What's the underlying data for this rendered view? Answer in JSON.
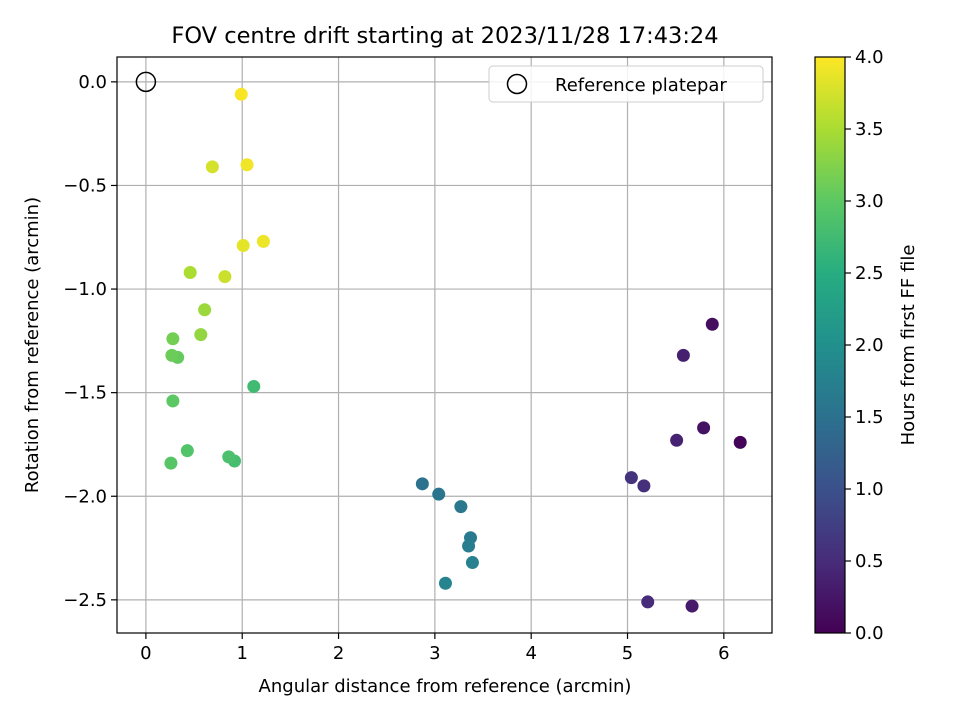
{
  "chart_data": {
    "type": "scatter",
    "title": "FOV centre drift starting at 2023/11/28 17:43:24",
    "xlabel": "Angular distance from reference (arcmin)",
    "ylabel": "Rotation from reference (arcmin)",
    "xlim": [
      -0.3,
      6.5
    ],
    "ylim": [
      -2.66,
      0.12
    ],
    "xticks": [
      0,
      1,
      2,
      3,
      4,
      5,
      6
    ],
    "xtick_labels": [
      "0",
      "1",
      "2",
      "3",
      "4",
      "5",
      "6"
    ],
    "yticks": [
      0.0,
      -0.5,
      -1.0,
      -1.5,
      -2.0,
      -2.5
    ],
    "ytick_labels": [
      "0.0",
      "−0.5",
      "−1.0",
      "−1.5",
      "−2.0",
      "−2.5"
    ],
    "grid": true,
    "legend": {
      "label": "Reference platepar",
      "position": "top-right"
    },
    "reference_point": {
      "x": 0.0,
      "y": 0.0
    },
    "colorbar": {
      "label": "Hours from first FF file",
      "range": [
        0.0,
        4.0
      ],
      "ticks": [
        0.0,
        0.5,
        1.0,
        1.5,
        2.0,
        2.5,
        3.0,
        3.5,
        4.0
      ],
      "tick_labels": [
        "0.0",
        "0.5",
        "1.0",
        "1.5",
        "2.0",
        "2.5",
        "3.0",
        "3.5",
        "4.0"
      ],
      "colormap": "viridis"
    },
    "points": [
      {
        "x": 6.17,
        "y": -1.74,
        "c": 0.05
      },
      {
        "x": 5.88,
        "y": -1.17,
        "c": 0.15
      },
      {
        "x": 5.79,
        "y": -1.67,
        "c": 0.2
      },
      {
        "x": 5.67,
        "y": -2.53,
        "c": 0.3
      },
      {
        "x": 5.58,
        "y": -1.32,
        "c": 0.35
      },
      {
        "x": 5.51,
        "y": -1.73,
        "c": 0.4
      },
      {
        "x": 5.21,
        "y": -2.51,
        "c": 0.5
      },
      {
        "x": 5.17,
        "y": -1.95,
        "c": 0.55
      },
      {
        "x": 5.04,
        "y": -1.91,
        "c": 0.6
      },
      {
        "x": 2.87,
        "y": -1.94,
        "c": 1.5
      },
      {
        "x": 3.04,
        "y": -1.99,
        "c": 1.55
      },
      {
        "x": 3.27,
        "y": -2.05,
        "c": 1.6
      },
      {
        "x": 3.37,
        "y": -2.2,
        "c": 1.65
      },
      {
        "x": 3.35,
        "y": -2.24,
        "c": 1.7
      },
      {
        "x": 3.39,
        "y": -2.32,
        "c": 1.75
      },
      {
        "x": 3.11,
        "y": -2.42,
        "c": 1.8
      },
      {
        "x": 1.12,
        "y": -1.47,
        "c": 2.75
      },
      {
        "x": 0.92,
        "y": -1.83,
        "c": 2.8
      },
      {
        "x": 0.86,
        "y": -1.81,
        "c": 2.85
      },
      {
        "x": 0.43,
        "y": -1.78,
        "c": 2.9
      },
      {
        "x": 0.26,
        "y": -1.84,
        "c": 2.95
      },
      {
        "x": 0.28,
        "y": -1.54,
        "c": 3.0
      },
      {
        "x": 0.33,
        "y": -1.33,
        "c": 3.05
      },
      {
        "x": 0.27,
        "y": -1.32,
        "c": 3.1
      },
      {
        "x": 0.28,
        "y": -1.24,
        "c": 3.15
      },
      {
        "x": 0.57,
        "y": -1.22,
        "c": 3.35
      },
      {
        "x": 0.61,
        "y": -1.1,
        "c": 3.4
      },
      {
        "x": 0.46,
        "y": -0.92,
        "c": 3.5
      },
      {
        "x": 0.82,
        "y": -0.94,
        "c": 3.7
      },
      {
        "x": 0.69,
        "y": -0.41,
        "c": 3.75
      },
      {
        "x": 1.01,
        "y": -0.79,
        "c": 3.85
      },
      {
        "x": 1.22,
        "y": -0.77,
        "c": 3.9
      },
      {
        "x": 1.05,
        "y": -0.4,
        "c": 3.92
      },
      {
        "x": 0.99,
        "y": -0.06,
        "c": 3.97
      }
    ]
  }
}
